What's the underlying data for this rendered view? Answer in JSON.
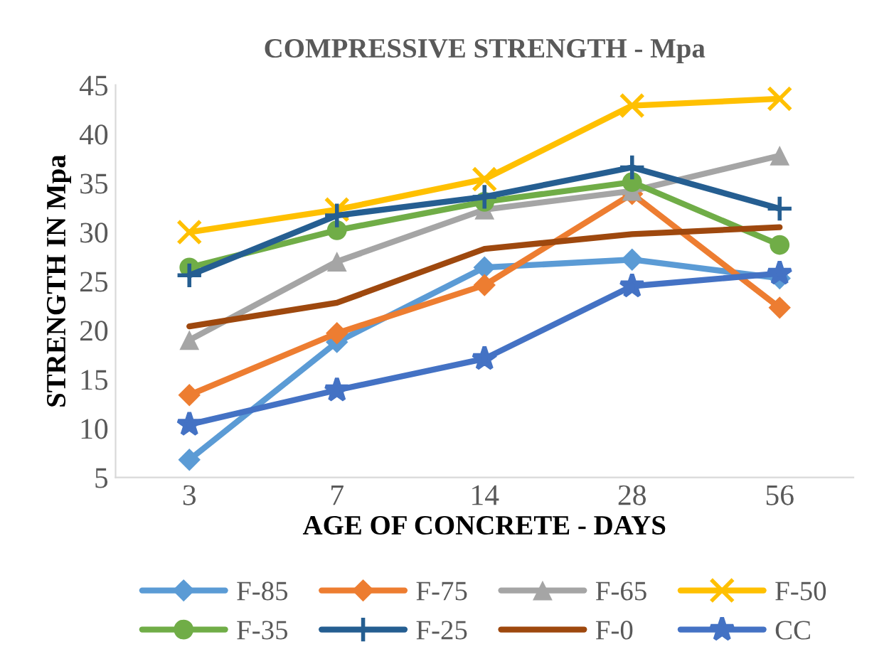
{
  "chart_data": {
    "type": "line",
    "title": "COMPRESSIVE STRENGTH - Mpa",
    "xlabel": "AGE OF CONCRETE - DAYS",
    "ylabel": "STRENGTH IN Mpa",
    "categories": [
      "3",
      "7",
      "14",
      "28",
      "56"
    ],
    "ylim": [
      5,
      45
    ],
    "yticks": [
      5,
      10,
      15,
      20,
      25,
      30,
      35,
      40,
      45
    ],
    "grid": false,
    "legend": "bottom",
    "series": [
      {
        "name": "F-85",
        "color": "#5b9bd5",
        "marker": "diamond",
        "values": [
          6.8,
          18.8,
          26.4,
          27.2,
          25.3
        ]
      },
      {
        "name": "F-75",
        "color": "#ed7d31",
        "marker": "diamond",
        "values": [
          13.4,
          19.7,
          24.6,
          33.9,
          22.3
        ]
      },
      {
        "name": "F-65",
        "color": "#a5a5a5",
        "marker": "triangle",
        "values": [
          19.0,
          27.0,
          32.3,
          34.2,
          37.8
        ]
      },
      {
        "name": "F-50",
        "color": "#ffc000",
        "marker": "cross",
        "values": [
          30.0,
          32.3,
          35.4,
          42.9,
          43.6
        ]
      },
      {
        "name": "F-35",
        "color": "#70ad47",
        "marker": "circle",
        "values": [
          26.4,
          30.2,
          33.1,
          35.1,
          28.7
        ]
      },
      {
        "name": "F-25",
        "color": "#255e91",
        "marker": "plus",
        "values": [
          25.6,
          31.7,
          33.6,
          36.6,
          32.4
        ]
      },
      {
        "name": "F-0",
        "color": "#9e480e",
        "marker": "none",
        "values": [
          20.4,
          22.8,
          28.3,
          29.8,
          30.5
        ]
      },
      {
        "name": "CC",
        "color": "#4472c4",
        "marker": "star",
        "values": [
          10.4,
          13.9,
          17.1,
          24.5,
          25.8
        ]
      }
    ]
  }
}
